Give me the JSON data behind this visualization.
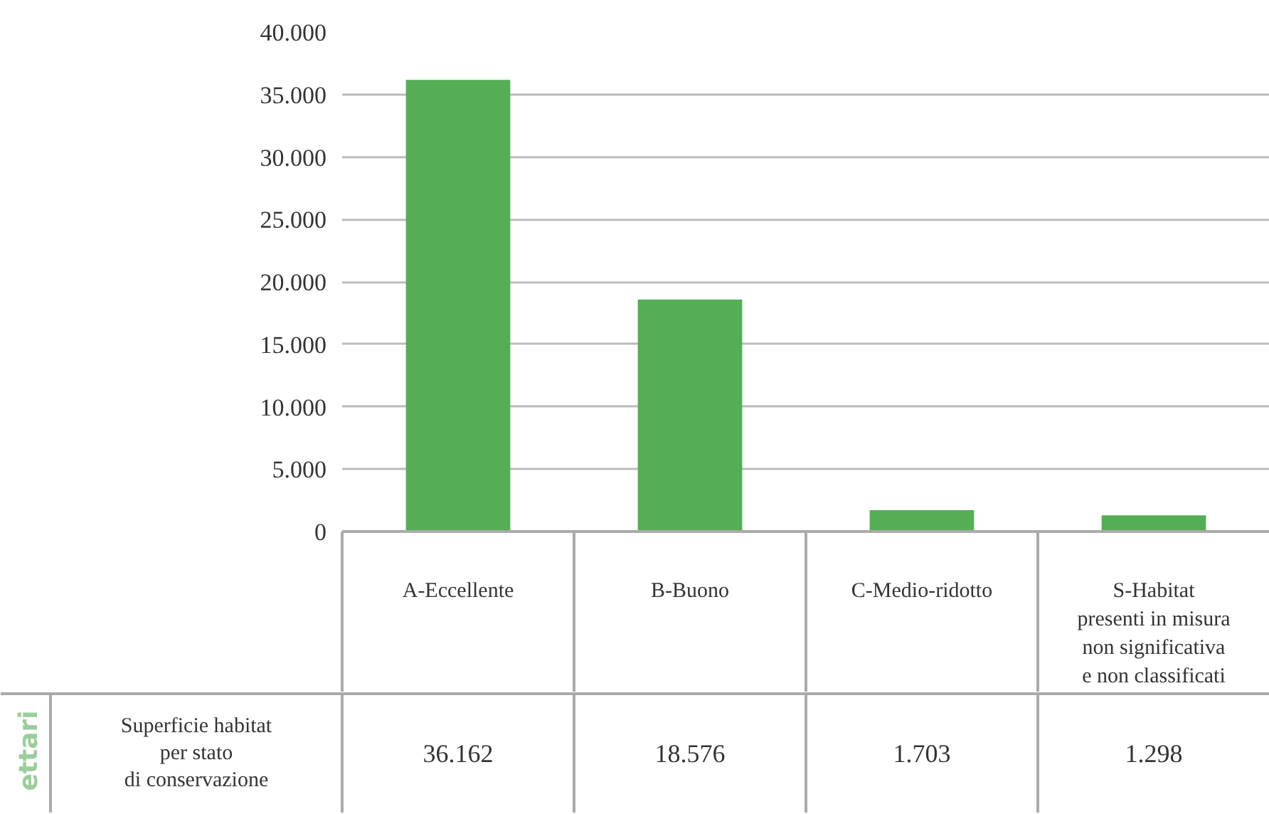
{
  "chart_data": {
    "type": "bar",
    "categories": [
      "A-Eccellente",
      "B-Buono",
      "C-Medio-ridotto",
      "S-Habitat\npresenti in misura\nnon significativa\ne non classificati"
    ],
    "series": [
      {
        "name": "Superficie habitat\nper stato\ndi conservazione",
        "color": "#55ad55",
        "values": [
          36162,
          18576,
          1703,
          1298
        ],
        "value_labels": [
          "36.162",
          "18.576",
          "1.703",
          "1.298"
        ]
      }
    ],
    "annotations": [
      "ettari"
    ],
    "ylim": [
      0,
      40000
    ],
    "yticks": [
      {
        "value": 0,
        "label": "0"
      },
      {
        "value": 5000,
        "label": "5.000"
      },
      {
        "value": 10000,
        "label": "10.000"
      },
      {
        "value": 15000,
        "label": "15.000"
      },
      {
        "value": 20000,
        "label": "20.000"
      },
      {
        "value": 25000,
        "label": "25.000"
      },
      {
        "value": 30000,
        "label": "30.000"
      },
      {
        "value": 35000,
        "label": "35.000"
      },
      {
        "value": 40000,
        "label": "40.000"
      }
    ],
    "grid": "y",
    "legend": false
  }
}
